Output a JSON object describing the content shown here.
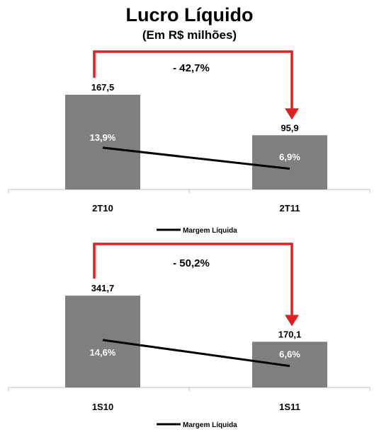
{
  "title": "Lucro Líquido",
  "subtitle": "(Em R$ milhões)",
  "colors": {
    "bar": "#7f7f7f",
    "arrow": "#e02020",
    "line": "#000000"
  },
  "chart_data": [
    {
      "type": "bar",
      "categories": [
        "2T10",
        "2T11"
      ],
      "values": [
        167.5,
        95.9
      ],
      "value_labels": [
        "167,5",
        "95,9"
      ],
      "change_label": "- 42,7%",
      "margin_series": {
        "name": "Margem Líquida",
        "values": [
          13.9,
          6.9
        ],
        "labels": [
          "13,9%",
          "6,9%"
        ]
      },
      "legend": "bottom-center"
    },
    {
      "type": "bar",
      "categories": [
        "1S10",
        "1S11"
      ],
      "values": [
        341.7,
        170.1
      ],
      "value_labels": [
        "341,7",
        "170,1"
      ],
      "change_label": "- 50,2%",
      "margin_series": {
        "name": "Margem Líquida",
        "values": [
          14.6,
          6.6
        ],
        "labels": [
          "14,6%",
          "6,6%"
        ]
      },
      "legend": "bottom-center"
    }
  ]
}
